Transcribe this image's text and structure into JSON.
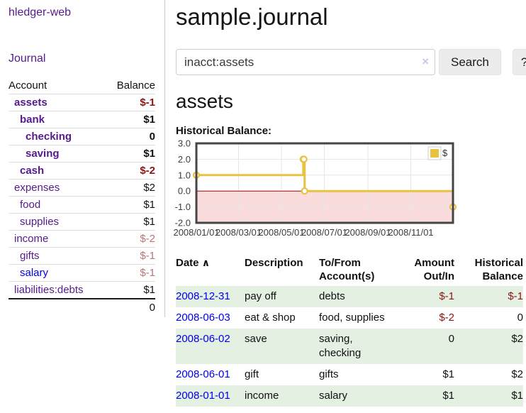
{
  "colors": {
    "link_purple": "#551a8b",
    "link_blue": "#0000ee",
    "negative_strong": "#8e1515",
    "negative_soft": "#b97575",
    "row_green": "#e3f0e2",
    "series_gold": "#e8c240",
    "negative_region_pink": "#fbdcdc",
    "zero_line_red": "#aa0000"
  },
  "sidebar": {
    "brand": "hledger-web",
    "nav_journal": "Journal",
    "accounts_table": {
      "headers": {
        "account": "Account",
        "balance": "Balance"
      },
      "rows": [
        {
          "name": "assets",
          "balance": "$-1"
        },
        {
          "name": "bank",
          "balance": "$1"
        },
        {
          "name": "checking",
          "balance": "0"
        },
        {
          "name": "saving",
          "balance": "$1"
        },
        {
          "name": "cash",
          "balance": "$-2"
        },
        {
          "name": "expenses",
          "balance": "$2"
        },
        {
          "name": "food",
          "balance": "$1"
        },
        {
          "name": "supplies",
          "balance": "$1"
        },
        {
          "name": "income",
          "balance": "$-2"
        },
        {
          "name": "gifts",
          "balance": "$-1"
        },
        {
          "name": "salary",
          "balance": "$-1"
        },
        {
          "name": "liabilities:debts",
          "balance": "$1"
        }
      ],
      "total": "0"
    }
  },
  "main": {
    "title": "sample.journal",
    "search": {
      "value": "inacct:assets",
      "clear_icon": "×",
      "button": "Search",
      "help_button": "?"
    },
    "account_heading": "assets",
    "chart_label": "Historical Balance:"
  },
  "register_table": {
    "headers": {
      "date": "Date",
      "sort_icon": "∧",
      "description": "Description",
      "accounts": "To/From Account(s)",
      "amount": "Amount Out/In",
      "balance": "Historical Balance"
    },
    "rows": [
      {
        "date": "2008-12-31",
        "description": "pay off",
        "accounts": "debts",
        "amount": "$-1",
        "balance": "$-1"
      },
      {
        "date": "2008-06-03",
        "description": "eat & shop",
        "accounts": "food, supplies",
        "amount": "$-2",
        "balance": "0"
      },
      {
        "date": "2008-06-02",
        "description": "save",
        "accounts": "saving, checking",
        "amount": "0",
        "balance": "$2"
      },
      {
        "date": "2008-06-01",
        "description": "gift",
        "accounts": "gifts",
        "amount": "$1",
        "balance": "$2"
      },
      {
        "date": "2008-01-01",
        "description": "income",
        "accounts": "salary",
        "amount": "$1",
        "balance": "$1"
      }
    ]
  },
  "chart_data": {
    "type": "line",
    "style": "step",
    "title": "Historical Balance:",
    "series": [
      {
        "name": "$",
        "color": "#e8c240",
        "points": [
          [
            "2008-01-01",
            1
          ],
          [
            "2008-06-01",
            2
          ],
          [
            "2008-06-02",
            2
          ],
          [
            "2008-06-03",
            0
          ],
          [
            "2008-12-31",
            -1
          ]
        ]
      }
    ],
    "xlim": [
      "2008-01-01",
      "2008-12-31"
    ],
    "ylim": [
      -2,
      3
    ],
    "x_ticks": [
      "2008/01/01",
      "2008/03/01",
      "2008/05/01",
      "2008/07/01",
      "2008/09/01",
      "2008/11/01"
    ],
    "y_ticks": [
      3.0,
      2.0,
      1.0,
      0.0,
      -1.0,
      -2.0
    ],
    "grid": true,
    "grid_color": "#e6e6e6",
    "border_color": "#454545",
    "negative_region_color": "#fbdcdc",
    "zero_line_color": "#aa0000",
    "legend": "$",
    "legend_position": "top-right"
  }
}
